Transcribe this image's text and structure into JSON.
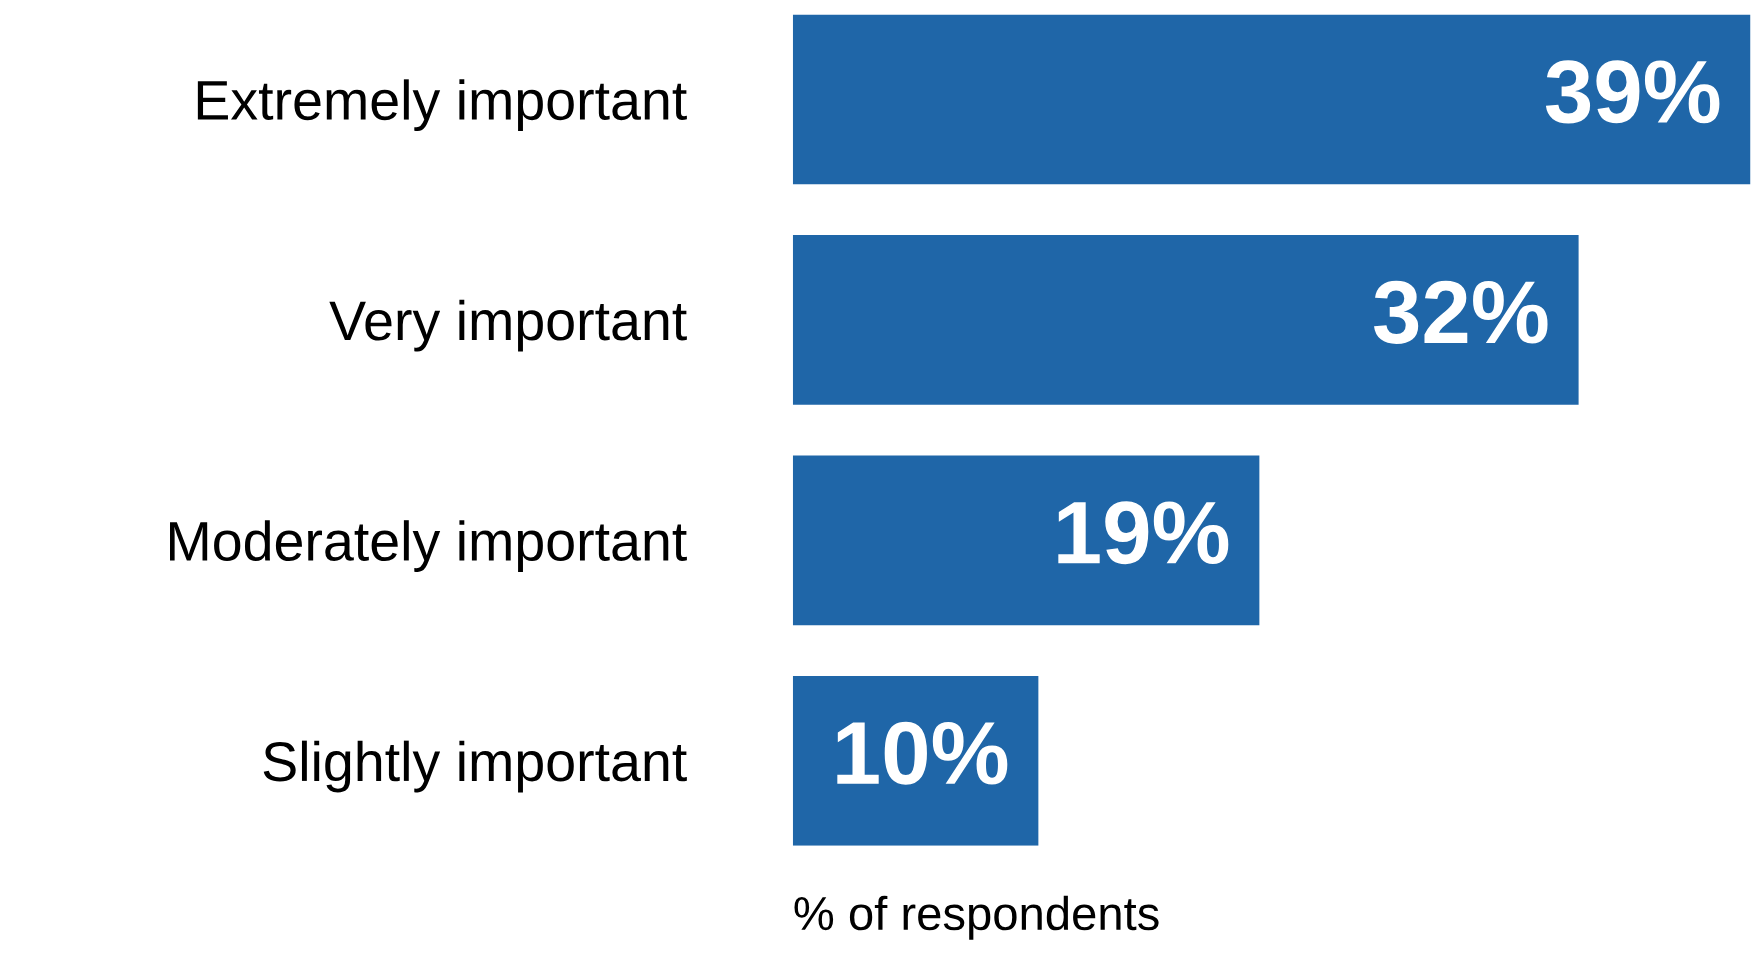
{
  "chart_data": {
    "type": "bar",
    "orientation": "horizontal",
    "categories": [
      "Extremely important",
      "Very important",
      "Moderately important",
      "Slightly important"
    ],
    "values": [
      39,
      32,
      19,
      10
    ],
    "value_labels": [
      "39%",
      "32%",
      "19%",
      "10%"
    ],
    "color": "#1f66a8",
    "xlabel": "% of respondents",
    "grid": false,
    "legend": false
  }
}
